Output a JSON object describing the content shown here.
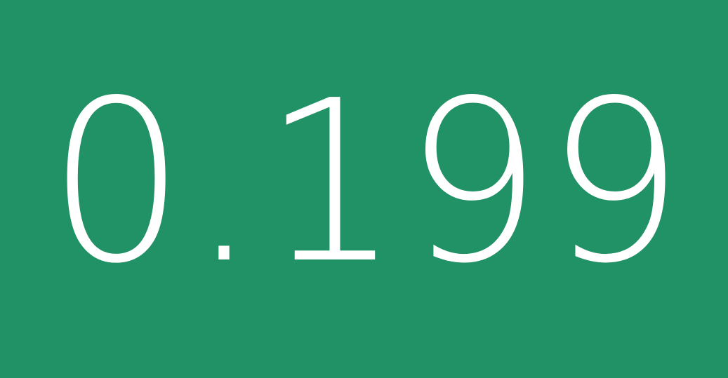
{
  "display": {
    "value": "0.199",
    "background_color": "#219166",
    "text_color": "#ffffff"
  }
}
